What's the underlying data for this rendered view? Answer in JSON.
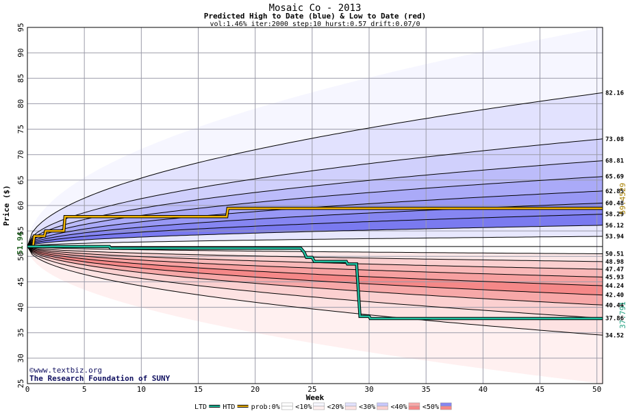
{
  "chart_data": {
    "type": "area",
    "title": "Mosaic Co - 2013",
    "subtitle": "Predicted High to Date (blue) &  Low to Date (red)",
    "params": "vol:1.46% iter:2000 step:10 hurst:0.57 drift:0.07/0",
    "xlabel": "Week",
    "ylabel": "Price ($)",
    "xlim": [
      0,
      50.5
    ],
    "ylim": [
      25,
      95
    ],
    "x_ticks": [
      "0",
      "5",
      "10",
      "15",
      "20",
      "25",
      "30",
      "35",
      "40",
      "45",
      "50"
    ],
    "y_ticks": [
      "25",
      "30",
      "35",
      "40",
      "45",
      "50",
      "55",
      "60",
      "65",
      "70",
      "75",
      "80",
      "85",
      "90",
      "95"
    ],
    "grid": true,
    "start_price": 51.94,
    "start_label": "51.94",
    "high_bands": [
      {
        "end": 95.0,
        "label": ""
      },
      {
        "end": 82.16,
        "label": "82.16"
      },
      {
        "end": 73.08,
        "label": "73.08"
      },
      {
        "end": 68.81,
        "label": "68.81"
      },
      {
        "end": 65.69,
        "label": "65.69"
      },
      {
        "end": 62.85,
        "label": "62.85"
      },
      {
        "end": 60.48,
        "label": "60.48"
      },
      {
        "end": 58.29,
        "label": "58.29"
      },
      {
        "end": 56.12,
        "label": "56.12"
      },
      {
        "end": 53.94,
        "label": "53.94"
      }
    ],
    "low_bands": [
      {
        "end": 50.51,
        "label": "50.51"
      },
      {
        "end": 48.98,
        "label": "48.98"
      },
      {
        "end": 47.47,
        "label": "47.47"
      },
      {
        "end": 45.93,
        "label": "45.93"
      },
      {
        "end": 44.24,
        "label": "44.24"
      },
      {
        "end": 42.4,
        "label": "42.40"
      },
      {
        "end": 40.44,
        "label": "40.44"
      },
      {
        "end": 37.86,
        "label": "37.86"
      },
      {
        "end": 34.52,
        "label": "34.52"
      },
      {
        "end": 25.0,
        "label": ""
      }
    ],
    "series": [
      {
        "name": "HTD",
        "color": "#f0b400",
        "end_label": "59.4529",
        "x": [
          0,
          0.5,
          0.6,
          1.5,
          1.6,
          3.2,
          3.3,
          17.5,
          17.6,
          50.5
        ],
        "y": [
          51.94,
          51.94,
          54.0,
          54.0,
          55.0,
          55.0,
          57.8,
          57.8,
          59.45,
          59.45
        ]
      },
      {
        "name": "LTD",
        "color": "#20c0a0",
        "end_label": "37.791",
        "x": [
          0,
          7.2,
          7.3,
          24.0,
          24.3,
          24.5,
          25.0,
          25.2,
          28.0,
          28.1,
          28.9,
          29.0,
          29.2,
          30.0,
          30.1,
          50.5
        ],
        "y": [
          51.94,
          51.94,
          51.6,
          51.6,
          50.8,
          49.8,
          49.8,
          49.0,
          49.0,
          48.5,
          48.5,
          45.0,
          38.2,
          38.2,
          37.79,
          37.79
        ]
      }
    ],
    "colors": {
      "high_fills": [
        "#f6f6ff",
        "#e2e2fe",
        "#d0d0fc",
        "#bcbcfa",
        "#aaaaf8",
        "#9898f5",
        "#8686f2",
        "#7a7af0",
        "#e8e8fe",
        "#ffffff"
      ],
      "low_fills": [
        "#ffffff",
        "#fde8e8",
        "#fbd0d0",
        "#f9b8b8",
        "#f7a0a0",
        "#f58888",
        "#f7a8a8",
        "#fbd0d0",
        "#fde2e2",
        "#fff0f0"
      ]
    },
    "legend": {
      "items": [
        "LTD",
        "HTD",
        "prob:0%",
        "<10%",
        "<20%",
        "<30%",
        "<40%",
        "<50%"
      ],
      "swatches": [
        "#20c0a0",
        "#f0b400",
        "#ffffff",
        "#f6f6ff",
        "#e2e2fe",
        "#c8c8fc",
        "#f7a8a8",
        "#8686f2"
      ],
      "swatches_low": [
        "",
        "",
        "#ffffff",
        "#fff0f0",
        "#fde2e2",
        "#fbd0d0",
        "#f58888",
        "#f58888"
      ]
    },
    "credit": {
      "line1": "©www.textbiz.org",
      "line2": "The Research Foundation of SUNY"
    }
  }
}
